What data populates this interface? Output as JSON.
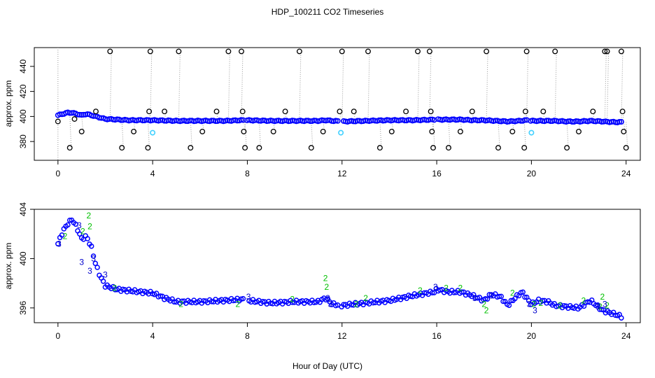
{
  "title": "HDP_100211  CO2 Timeseries",
  "xlabel": "Hour of Day (UTC)",
  "colors": {
    "primary_points": "#0000ff",
    "flag2": "#00c000",
    "flag3": "#0000cc",
    "outliers": "#000000",
    "highlight": "#40d0ff",
    "drop_lines": "#999999"
  },
  "chart_data": [
    {
      "type": "scatter",
      "panel": "top",
      "ylabel": "approx. ppm",
      "xlim": [
        -1.0,
        24.6
      ],
      "ylim": [
        365,
        455
      ],
      "xticks": [
        0,
        4,
        8,
        12,
        16,
        20,
        24
      ],
      "yticks": [
        380,
        400,
        420,
        440
      ],
      "baseline_series": {
        "name": "CO2 (blue)",
        "x": [
          0.0,
          0.2,
          0.4,
          0.6,
          0.8,
          1.0,
          1.2,
          1.4,
          1.6,
          1.8,
          2.0,
          2.5,
          3.0,
          3.5,
          4.0,
          5.0,
          6.0,
          7.0,
          7.8,
          8.0,
          9.0,
          10.0,
          11.0,
          11.3,
          11.6,
          12.0,
          13.0,
          14.0,
          15.0,
          15.9,
          16.0,
          17.0,
          17.5,
          18.0,
          18.5,
          19.0,
          19.5,
          19.8,
          20.0,
          20.5,
          21.0,
          21.5,
          22.0,
          22.5,
          23.0,
          23.5,
          23.8
        ],
        "y": [
          401,
          402,
          403,
          403,
          402,
          401,
          402,
          401,
          400,
          399,
          398,
          397.5,
          397,
          397,
          397,
          396.5,
          396.5,
          396.5,
          397,
          397,
          396.5,
          396.5,
          396.5,
          397,
          396.5,
          396,
          396.5,
          397,
          397,
          397.5,
          397.5,
          397.5,
          397,
          397,
          396.5,
          396,
          396.5,
          397,
          396.5,
          396.5,
          396.5,
          396,
          396,
          396.5,
          396,
          395.5,
          395.5
        ]
      },
      "outliers": {
        "name": "flagged points (black circles)",
        "x": [
          0.0,
          0.5,
          0.7,
          1.0,
          1.6,
          2.2,
          2.7,
          3.2,
          3.8,
          3.85,
          3.9,
          4.5,
          5.1,
          5.6,
          6.1,
          6.7,
          7.2,
          7.75,
          7.8,
          7.85,
          7.9,
          8.5,
          9.1,
          9.6,
          10.2,
          10.7,
          11.2,
          11.9,
          12.0,
          12.5,
          13.1,
          13.6,
          14.1,
          14.7,
          15.2,
          15.7,
          15.75,
          15.8,
          15.85,
          16.5,
          17.0,
          17.5,
          18.1,
          18.6,
          19.2,
          19.7,
          19.75,
          19.8,
          20.5,
          21.0,
          21.5,
          22.0,
          22.6,
          23.1,
          23.2,
          23.8,
          23.85,
          23.9,
          24.0
        ],
        "y": [
          396,
          375,
          398,
          388,
          404,
          452,
          375,
          388,
          375,
          404,
          452,
          404,
          452,
          375,
          388,
          404,
          452,
          452,
          404,
          388,
          375,
          375,
          388,
          404,
          452,
          375,
          388,
          404,
          452,
          404,
          452,
          375,
          388,
          404,
          452,
          452,
          404,
          388,
          375,
          375,
          388,
          404,
          452,
          375,
          388,
          375,
          404,
          452,
          404,
          452,
          375,
          388,
          404,
          452,
          452,
          452,
          404,
          388,
          375
        ]
      },
      "highlights": {
        "name": "cyan points",
        "x": [
          4.0,
          11.95,
          20.0
        ],
        "y": [
          387,
          387,
          387
        ]
      }
    },
    {
      "type": "scatter",
      "panel": "bottom",
      "ylabel": "approx. ppm",
      "xlim": [
        -1.0,
        24.6
      ],
      "ylim": [
        394.8,
        404.0
      ],
      "xticks": [
        0,
        4,
        8,
        12,
        16,
        20,
        24
      ],
      "yticks": [
        396,
        400,
        404
      ],
      "series": [
        {
          "name": "CO2 (blue)",
          "x": [
            0.0,
            0.2,
            0.4,
            0.6,
            0.8,
            1.0,
            1.2,
            1.4,
            1.6,
            1.8,
            2.0,
            2.5,
            3.0,
            3.5,
            4.0,
            4.5,
            5.0,
            6.0,
            7.0,
            7.9,
            8.0,
            9.0,
            10.0,
            11.0,
            11.3,
            11.6,
            12.0,
            13.0,
            14.0,
            15.0,
            15.9,
            16.0,
            16.5,
            17.0,
            17.5,
            18.0,
            18.3,
            18.7,
            19.0,
            19.3,
            19.6,
            20.0,
            20.3,
            20.7,
            21.0,
            21.5,
            22.0,
            22.5,
            23.0,
            23.5,
            23.8
          ],
          "y": [
            401.2,
            402.2,
            402.8,
            403.2,
            402.5,
            401.6,
            401.8,
            401.0,
            399.5,
            398.5,
            397.8,
            397.5,
            397.4,
            397.3,
            397.2,
            396.8,
            396.5,
            396.5,
            396.6,
            396.7,
            396.6,
            396.4,
            396.5,
            396.5,
            396.8,
            396.3,
            396.2,
            396.4,
            396.6,
            397.0,
            397.3,
            397.5,
            397.3,
            397.3,
            397.0,
            396.6,
            397.1,
            396.9,
            396.2,
            396.8,
            397.3,
            396.3,
            396.6,
            396.5,
            396.2,
            396.1,
            396.0,
            396.6,
            395.8,
            395.5,
            395.3
          ]
        },
        {
          "name": "flag 2 (green)",
          "label": "2",
          "x": [
            0.3,
            1.05,
            1.3,
            1.35,
            2.4,
            5.2,
            7.6,
            9.9,
            11.3,
            11.35,
            12.6,
            13.0,
            15.3,
            16.4,
            17.0,
            18.0,
            18.1,
            19.2,
            20.1,
            20.4,
            21.2,
            22.2,
            22.9,
            23.0,
            23.2
          ],
          "y": [
            401.8,
            402.2,
            403.5,
            402.6,
            397.6,
            396.3,
            396.3,
            396.7,
            398.4,
            397.7,
            396.3,
            396.8,
            397.4,
            397.6,
            397.6,
            396.3,
            395.8,
            397.2,
            396.3,
            396.4,
            396.2,
            396.6,
            396.1,
            396.9,
            396.2
          ]
        },
        {
          "name": "flag 3 (blue)",
          "label": "3",
          "x": [
            0.05,
            0.9,
            1.0,
            1.35,
            1.5,
            2.0,
            8.05,
            11.4,
            11.5,
            15.95,
            17.6,
            18.3,
            19.9,
            20.15,
            22.8,
            23.1
          ],
          "y": [
            401.2,
            402.7,
            399.7,
            399.0,
            400.0,
            398.7,
            396.9,
            396.8,
            396.3,
            397.7,
            396.8,
            397.0,
            396.3,
            395.8,
            396.1,
            396.3
          ]
        }
      ]
    }
  ]
}
